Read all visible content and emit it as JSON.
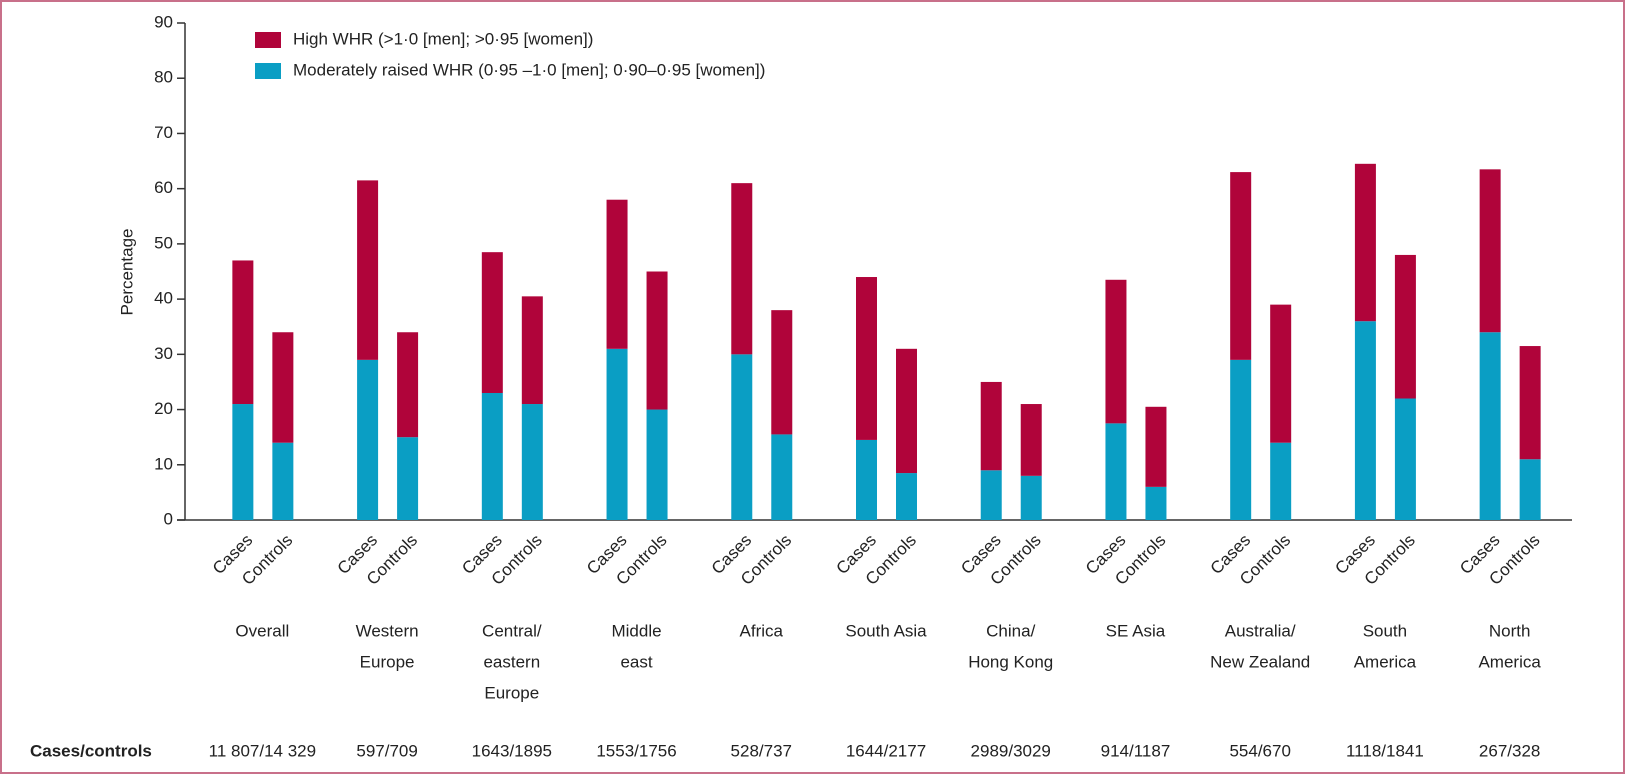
{
  "chart_data": {
    "type": "stacked_bar",
    "y_label": "Percentage",
    "categories": [
      "Cases",
      "Controls",
      "Cases",
      "Controls",
      "Cases",
      "Controls",
      "Cases",
      "Controls",
      "Cases",
      "Controls",
      "Cases",
      "Controls",
      "Cases",
      "Controls",
      "Cases",
      "Controls",
      "Cases",
      "Controls",
      "Cases",
      "Controls",
      "Cases",
      "Controls"
    ],
    "groups": [
      [
        "Overall"
      ],
      [
        "Western",
        "Europe"
      ],
      [
        "Central/",
        "eastern",
        "Europe"
      ],
      [
        "Middle",
        "east"
      ],
      [
        "Africa"
      ],
      [
        "South Asia"
      ],
      [
        "China/",
        "Hong Kong"
      ],
      [
        "SE Asia"
      ],
      [
        "Australia/",
        "New Zealand"
      ],
      [
        "South",
        "America"
      ],
      [
        "North",
        "America"
      ]
    ],
    "series": [
      {
        "name": "Moderately raised WHR (0·95 –1·0 [men]; 0·90–0·95 [women])",
        "color": "#0a9ec4",
        "values": [
          21,
          14,
          29,
          15,
          23,
          21,
          31,
          20,
          30,
          15.5,
          14.5,
          8.5,
          9,
          8,
          17.5,
          6,
          29,
          14,
          36,
          22,
          34,
          11
        ]
      },
      {
        "name": "High WHR (>1·0 [men]; >0·95 [women])",
        "color": "#b0043a",
        "values": [
          26,
          20,
          32.5,
          19,
          25.5,
          19.5,
          27,
          25,
          31,
          22.5,
          29.5,
          22.5,
          16,
          13,
          26,
          14.5,
          34,
          25,
          28.5,
          26,
          29.5,
          20.5
        ]
      }
    ],
    "ylim": [
      0,
      90
    ],
    "yticks": [
      0,
      10,
      20,
      30,
      40,
      50,
      60,
      70,
      80,
      90
    ],
    "sample_sizes_label": "Cases/controls",
    "sample_sizes": [
      "11 807/14 329",
      "597/709",
      "1643/1895",
      "1553/1756",
      "528/737",
      "1644/2177",
      "2989/3029",
      "914/1187",
      "554/670",
      "1118/1841",
      "267/328"
    ]
  }
}
